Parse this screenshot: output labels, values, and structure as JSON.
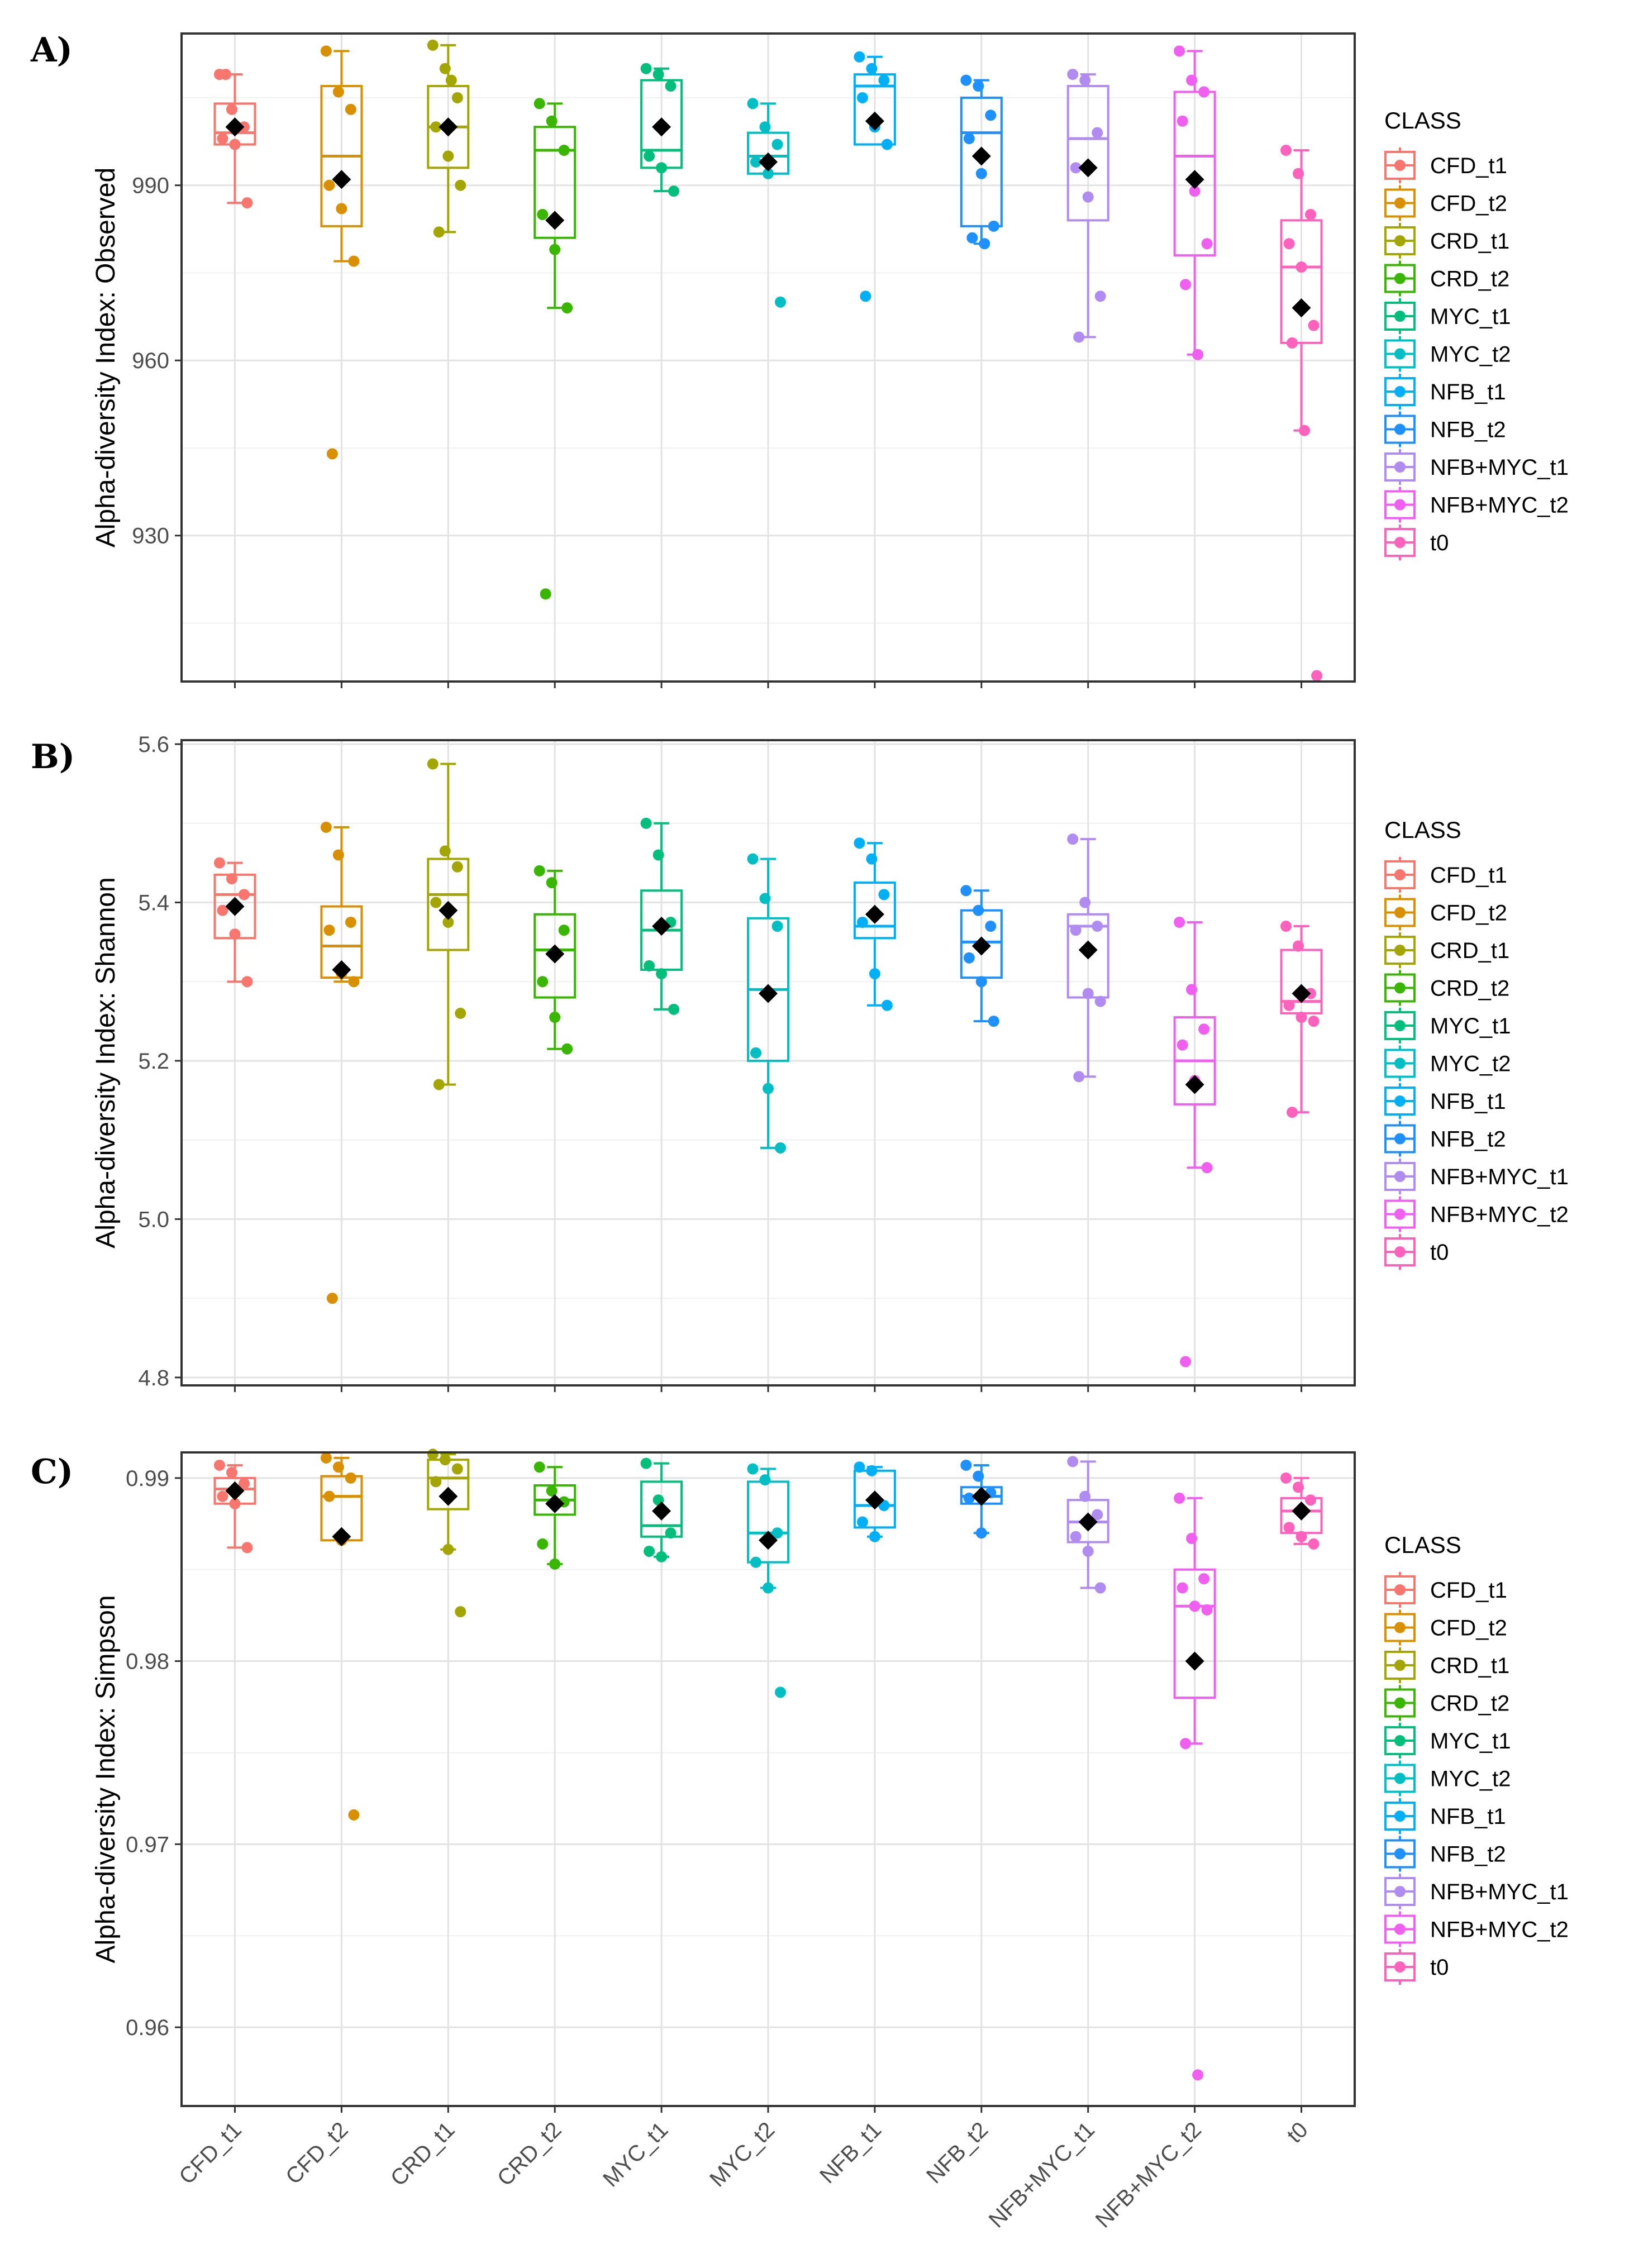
{
  "legend": {
    "title": "CLASS",
    "items": [
      {
        "label": "CFD_t1",
        "color": "#F8766D"
      },
      {
        "label": "CFD_t2",
        "color": "#D89000"
      },
      {
        "label": "CRD_t1",
        "color": "#A3A500"
      },
      {
        "label": "CRD_t2",
        "color": "#39B600"
      },
      {
        "label": "MYC_t1",
        "color": "#00BF7D"
      },
      {
        "label": "MYC_t2",
        "color": "#00BFC4"
      },
      {
        "label": "NFB_t1",
        "color": "#00B0F6"
      },
      {
        "label": "NFB_t2",
        "color": "#1E90FF"
      },
      {
        "label": "NFB+MYC_t1",
        "color": "#B08CF0"
      },
      {
        "label": "NFB+MYC_t2",
        "color": "#F060F0"
      },
      {
        "label": "t0",
        "color": "#FF62BC"
      }
    ]
  },
  "chart_data": [
    {
      "type": "box",
      "panel": "A)",
      "ylabel": "Alpha-diversity Index: Observed",
      "ylim": [
        905,
        1016
      ],
      "yticks": [
        930,
        960,
        990
      ],
      "categories": [
        "CFD_t1",
        "CFD_t2",
        "CRD_t1",
        "CRD_t2",
        "MYC_t1",
        "MYC_t2",
        "NFB_t1",
        "NFB_t2",
        "NFB+MYC_t1",
        "NFB+MYC_t2",
        "t0"
      ],
      "boxes": [
        {
          "q1": 997,
          "median": 999,
          "q3": 1004,
          "lower": 987,
          "upper": 1009,
          "mean": 1000
        },
        {
          "q1": 983,
          "median": 995,
          "q3": 1007,
          "lower": 977,
          "upper": 1013,
          "mean": 991
        },
        {
          "q1": 993,
          "median": 1000,
          "q3": 1007,
          "lower": 982,
          "upper": 1014,
          "mean": 1000
        },
        {
          "q1": 981,
          "median": 996,
          "q3": 1000,
          "lower": 969,
          "upper": 1004,
          "mean": 984
        },
        {
          "q1": 993,
          "median": 996,
          "q3": 1008,
          "lower": 989,
          "upper": 1010,
          "mean": 1000
        },
        {
          "q1": 992,
          "median": 995,
          "q3": 999,
          "lower": 992,
          "upper": 1004,
          "mean": 994
        },
        {
          "q1": 997,
          "median": 1007,
          "q3": 1009,
          "lower": 997,
          "upper": 1012,
          "mean": 1001
        },
        {
          "q1": 983,
          "median": 999,
          "q3": 1005,
          "lower": 980,
          "upper": 1008,
          "mean": 995
        },
        {
          "q1": 984,
          "median": 998,
          "q3": 1007,
          "lower": 964,
          "upper": 1009,
          "mean": 993
        },
        {
          "q1": 978,
          "median": 995,
          "q3": 1006,
          "lower": 961,
          "upper": 1013,
          "mean": 991
        },
        {
          "q1": 963,
          "median": 976,
          "q3": 984,
          "lower": 948,
          "upper": 996,
          "mean": 969
        }
      ],
      "points": [
        [
          1009,
          1003,
          1000,
          998,
          997,
          987,
          1009
        ],
        [
          1013,
          1006,
          1003,
          990,
          986,
          977,
          944
        ],
        [
          1014,
          1010,
          1005,
          1000,
          995,
          990,
          982,
          1008
        ],
        [
          1004,
          1001,
          996,
          985,
          979,
          969,
          920
        ],
        [
          1010,
          1009,
          1007,
          995,
          993,
          989
        ],
        [
          1004,
          1000,
          997,
          994,
          992,
          970
        ],
        [
          1012,
          1010,
          1008,
          1005,
          1000,
          997,
          971
        ],
        [
          1008,
          1007,
          1002,
          998,
          992,
          983,
          981,
          980
        ],
        [
          1009,
          1008,
          999,
          993,
          988,
          971,
          964
        ],
        [
          1013,
          1008,
          1006,
          1001,
          989,
          980,
          973,
          961
        ],
        [
          996,
          992,
          985,
          980,
          976,
          966,
          963,
          948,
          906
        ]
      ]
    },
    {
      "type": "box",
      "panel": "B)",
      "ylabel": "Alpha-diversity Index: Shannon",
      "ylim": [
        4.79,
        5.605
      ],
      "yticks": [
        4.8,
        5.0,
        5.2,
        5.4,
        5.6
      ],
      "categories": [
        "CFD_t1",
        "CFD_t2",
        "CRD_t1",
        "CRD_t2",
        "MYC_t1",
        "MYC_t2",
        "NFB_t1",
        "NFB_t2",
        "NFB+MYC_t1",
        "NFB+MYC_t2",
        "t0"
      ],
      "boxes": [
        {
          "q1": 5.355,
          "median": 5.41,
          "q3": 5.435,
          "lower": 5.3,
          "upper": 5.45,
          "mean": 5.395
        },
        {
          "q1": 5.305,
          "median": 5.345,
          "q3": 5.395,
          "lower": 5.3,
          "upper": 5.495,
          "mean": 5.315
        },
        {
          "q1": 5.34,
          "median": 5.41,
          "q3": 5.455,
          "lower": 5.17,
          "upper": 5.575,
          "mean": 5.39
        },
        {
          "q1": 5.28,
          "median": 5.34,
          "q3": 5.385,
          "lower": 5.215,
          "upper": 5.44,
          "mean": 5.335
        },
        {
          "q1": 5.315,
          "median": 5.365,
          "q3": 5.415,
          "lower": 5.265,
          "upper": 5.5,
          "mean": 5.37
        },
        {
          "q1": 5.2,
          "median": 5.29,
          "q3": 5.38,
          "lower": 5.09,
          "upper": 5.455,
          "mean": 5.285
        },
        {
          "q1": 5.355,
          "median": 5.37,
          "q3": 5.425,
          "lower": 5.27,
          "upper": 5.475,
          "mean": 5.385
        },
        {
          "q1": 5.305,
          "median": 5.35,
          "q3": 5.39,
          "lower": 5.25,
          "upper": 5.415,
          "mean": 5.345
        },
        {
          "q1": 5.28,
          "median": 5.37,
          "q3": 5.385,
          "lower": 5.18,
          "upper": 5.48,
          "mean": 5.34
        },
        {
          "q1": 5.145,
          "median": 5.2,
          "q3": 5.255,
          "lower": 5.065,
          "upper": 5.375,
          "mean": 5.17
        },
        {
          "q1": 5.26,
          "median": 5.275,
          "q3": 5.34,
          "lower": 5.135,
          "upper": 5.37,
          "mean": 5.285
        }
      ],
      "points": [
        [
          5.45,
          5.43,
          5.41,
          5.39,
          5.36,
          5.3
        ],
        [
          5.495,
          5.46,
          5.375,
          5.365,
          5.31,
          5.3,
          4.9
        ],
        [
          5.575,
          5.465,
          5.445,
          5.4,
          5.375,
          5.26,
          5.17
        ],
        [
          5.44,
          5.425,
          5.365,
          5.3,
          5.255,
          5.215
        ],
        [
          5.5,
          5.46,
          5.375,
          5.32,
          5.31,
          5.265
        ],
        [
          5.455,
          5.405,
          5.37,
          5.21,
          5.165,
          5.09
        ],
        [
          5.475,
          5.455,
          5.41,
          5.375,
          5.31,
          5.27
        ],
        [
          5.415,
          5.39,
          5.37,
          5.33,
          5.3,
          5.25
        ],
        [
          5.48,
          5.4,
          5.37,
          5.365,
          5.285,
          5.275,
          5.18
        ],
        [
          5.375,
          5.29,
          5.24,
          5.22,
          5.175,
          5.065,
          4.82
        ],
        [
          5.37,
          5.345,
          5.285,
          5.27,
          5.255,
          5.25,
          5.135
        ]
      ]
    },
    {
      "type": "box",
      "panel": "C)",
      "ylabel": "Alpha-diversity Index: Simpson",
      "ylim": [
        0.9557,
        0.9914
      ],
      "yticks": [
        0.96,
        0.97,
        0.98,
        0.99
      ],
      "categories": [
        "CFD_t1",
        "CFD_t2",
        "CRD_t1",
        "CRD_t2",
        "MYC_t1",
        "MYC_t2",
        "NFB_t1",
        "NFB_t2",
        "NFB+MYC_t1",
        "NFB+MYC_t2",
        "t0"
      ],
      "xtick_labels": [
        "CFD_t1",
        "CFD_t2",
        "CRD_t1",
        "CRD_t2",
        "MYC_t1",
        "MYC_t2",
        "NFB_t1",
        "NFB_t2",
        "NFB+MYC_t1",
        "NFB+MYC_t2",
        "t0"
      ],
      "boxes": [
        {
          "q1": 0.9886,
          "median": 0.9894,
          "q3": 0.99,
          "lower": 0.9862,
          "upper": 0.9907,
          "mean": 0.9893
        },
        {
          "q1": 0.9866,
          "median": 0.989,
          "q3": 0.9901,
          "lower": 0.9866,
          "upper": 0.9911,
          "mean": 0.9868
        },
        {
          "q1": 0.9883,
          "median": 0.99,
          "q3": 0.991,
          "lower": 0.9861,
          "upper": 0.9913,
          "mean": 0.989
        },
        {
          "q1": 0.988,
          "median": 0.9888,
          "q3": 0.9896,
          "lower": 0.9853,
          "upper": 0.9906,
          "mean": 0.9886
        },
        {
          "q1": 0.9868,
          "median": 0.9874,
          "q3": 0.9898,
          "lower": 0.9857,
          "upper": 0.9908,
          "mean": 0.9882
        },
        {
          "q1": 0.9854,
          "median": 0.987,
          "q3": 0.9898,
          "lower": 0.984,
          "upper": 0.9905,
          "mean": 0.9866
        },
        {
          "q1": 0.9873,
          "median": 0.9885,
          "q3": 0.9904,
          "lower": 0.9868,
          "upper": 0.9906,
          "mean": 0.9888
        },
        {
          "q1": 0.9886,
          "median": 0.989,
          "q3": 0.9895,
          "lower": 0.987,
          "upper": 0.9907,
          "mean": 0.989
        },
        {
          "q1": 0.9865,
          "median": 0.9876,
          "q3": 0.9888,
          "lower": 0.984,
          "upper": 0.9909,
          "mean": 0.9876
        },
        {
          "q1": 0.978,
          "median": 0.983,
          "q3": 0.985,
          "lower": 0.9755,
          "upper": 0.9889,
          "mean": 0.98
        },
        {
          "q1": 0.987,
          "median": 0.9882,
          "q3": 0.9889,
          "lower": 0.9864,
          "upper": 0.99,
          "mean": 0.9882
        }
      ],
      "points": [
        [
          0.9907,
          0.9903,
          0.9897,
          0.989,
          0.9886,
          0.9862
        ],
        [
          0.9911,
          0.9906,
          0.99,
          0.989,
          0.9866,
          0.9716
        ],
        [
          0.9913,
          0.991,
          0.9905,
          0.9898,
          0.9861,
          0.9827
        ],
        [
          0.9906,
          0.9893,
          0.9887,
          0.9864,
          0.9853
        ],
        [
          0.9908,
          0.9888,
          0.987,
          0.986,
          0.9857
        ],
        [
          0.9905,
          0.9899,
          0.987,
          0.9854,
          0.984,
          0.9783
        ],
        [
          0.9906,
          0.9904,
          0.9885,
          0.9876,
          0.9868
        ],
        [
          0.9907,
          0.9901,
          0.9892,
          0.9889,
          0.987
        ],
        [
          0.9909,
          0.989,
          0.988,
          0.9868,
          0.986,
          0.984
        ],
        [
          0.9889,
          0.9867,
          0.9845,
          0.984,
          0.983,
          0.9828,
          0.9755,
          0.9574
        ],
        [
          0.99,
          0.9895,
          0.9888,
          0.9873,
          0.9868,
          0.9864
        ]
      ]
    }
  ]
}
